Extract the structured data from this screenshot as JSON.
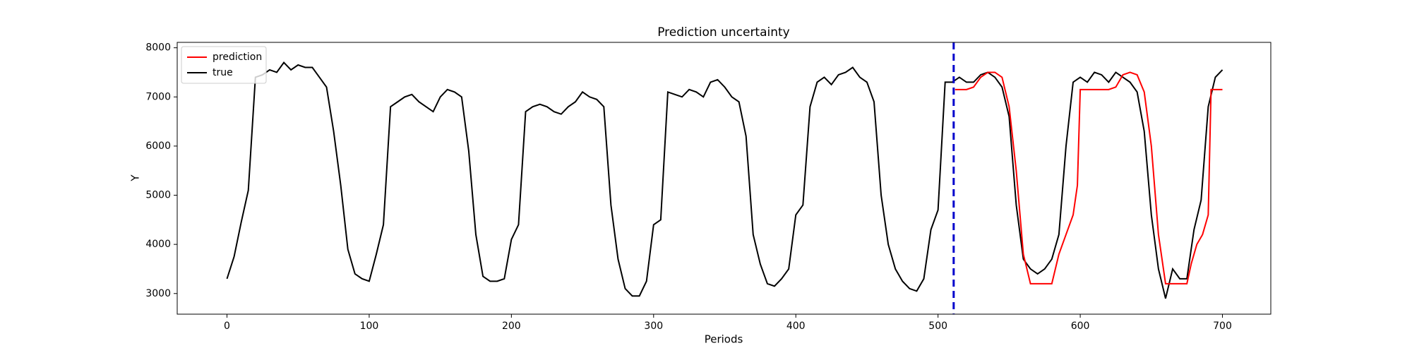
{
  "chart_data": {
    "type": "line",
    "title": "Prediction uncertainty",
    "x_label": "Periods",
    "y_label": "Y",
    "xlim": [
      -35,
      734
    ],
    "ylim": [
      2580,
      8110
    ],
    "xticks": [
      0,
      100,
      200,
      300,
      400,
      500,
      600,
      700
    ],
    "yticks": [
      3000,
      4000,
      5000,
      6000,
      7000,
      8000
    ],
    "legend": "upper left",
    "vline": {
      "value": 511,
      "color": "#0000cc"
    },
    "series": [
      {
        "name": "prediction",
        "color": "#ff0000",
        "x": [
          512,
          520,
          525,
          530,
          535,
          540,
          545,
          550,
          555,
          560,
          565,
          570,
          575,
          580,
          585,
          590,
          595,
          598,
          600,
          605,
          610,
          615,
          620,
          625,
          630,
          635,
          640,
          645,
          650,
          655,
          660,
          665,
          670,
          675,
          678,
          682,
          686,
          690,
          692,
          695,
          700
        ],
        "values": [
          7150,
          7150,
          7200,
          7400,
          7500,
          7500,
          7400,
          6800,
          5500,
          3800,
          3200,
          3200,
          3200,
          3200,
          3800,
          4200,
          4600,
          5200,
          7150,
          7150,
          7150,
          7150,
          7150,
          7200,
          7450,
          7500,
          7450,
          7100,
          6000,
          4200,
          3200,
          3200,
          3200,
          3200,
          3600,
          4000,
          4200,
          4600,
          7150,
          7150,
          7150
        ]
      },
      {
        "name": "true",
        "color": "#000000",
        "x": [
          0,
          5,
          10,
          15,
          20,
          25,
          30,
          35,
          40,
          45,
          50,
          55,
          60,
          65,
          70,
          75,
          80,
          85,
          90,
          95,
          100,
          105,
          110,
          115,
          120,
          125,
          130,
          135,
          140,
          145,
          150,
          155,
          160,
          165,
          170,
          175,
          180,
          185,
          190,
          195,
          200,
          205,
          210,
          215,
          220,
          225,
          230,
          235,
          240,
          245,
          250,
          255,
          260,
          265,
          270,
          275,
          280,
          285,
          290,
          295,
          300,
          305,
          310,
          315,
          320,
          325,
          330,
          335,
          340,
          345,
          350,
          355,
          360,
          365,
          370,
          375,
          380,
          385,
          390,
          395,
          400,
          405,
          410,
          415,
          420,
          425,
          430,
          435,
          440,
          445,
          450,
          455,
          460,
          465,
          470,
          475,
          480,
          485,
          490,
          495,
          500,
          505,
          510,
          515,
          520,
          525,
          530,
          535,
          540,
          545,
          550,
          555,
          560,
          565,
          570,
          575,
          580,
          585,
          590,
          595,
          600,
          605,
          610,
          615,
          620,
          625,
          630,
          635,
          640,
          645,
          650,
          655,
          660,
          665,
          670,
          675,
          680,
          685,
          690,
          695,
          700
        ],
        "values": [
          3300,
          3750,
          4450,
          5100,
          7400,
          7450,
          7550,
          7500,
          7700,
          7550,
          7650,
          7600,
          7600,
          7400,
          7200,
          6300,
          5200,
          3900,
          3400,
          3300,
          3250,
          3800,
          4400,
          6800,
          6900,
          7000,
          7050,
          6900,
          6800,
          6700,
          7000,
          7150,
          7100,
          7000,
          5900,
          4200,
          3350,
          3250,
          3250,
          3300,
          4100,
          4400,
          6700,
          6800,
          6850,
          6800,
          6700,
          6650,
          6800,
          6900,
          7100,
          7000,
          6950,
          6800,
          4800,
          3700,
          3100,
          2950,
          2950,
          3250,
          4400,
          4500,
          7100,
          7050,
          7000,
          7150,
          7100,
          7000,
          7300,
          7350,
          7200,
          7000,
          6900,
          6200,
          4200,
          3600,
          3200,
          3150,
          3300,
          3500,
          4600,
          4800,
          6800,
          7300,
          7400,
          7250,
          7450,
          7500,
          7600,
          7400,
          7300,
          6900,
          5000,
          4000,
          3500,
          3250,
          3100,
          3050,
          3300,
          4300,
          4700,
          7300,
          7300,
          7400,
          7300,
          7300,
          7450,
          7500,
          7400,
          7200,
          6600,
          4800,
          3700,
          3500,
          3400,
          3500,
          3700,
          4200,
          6000,
          7300,
          7400,
          7300,
          7500,
          7450,
          7300,
          7500,
          7400,
          7300,
          7100,
          6300,
          4600,
          3500,
          2900,
          3500,
          3300,
          3300,
          4300,
          4900,
          6800,
          7400,
          7550
        ]
      }
    ]
  }
}
